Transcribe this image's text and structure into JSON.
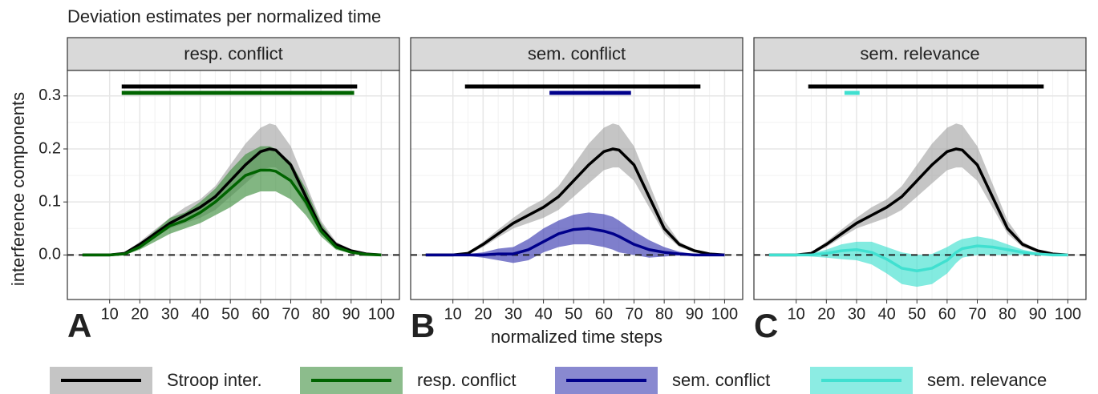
{
  "chart_data": {
    "type": "line",
    "title": "Deviation estimates per normalized time",
    "xlabel": "normalized time steps",
    "ylabel": "interference components",
    "x": [
      1,
      5,
      10,
      15,
      20,
      25,
      30,
      35,
      40,
      45,
      50,
      55,
      60,
      63,
      65,
      70,
      75,
      80,
      85,
      90,
      95,
      100
    ],
    "xlim": [
      -4,
      106
    ],
    "ylim": [
      -0.084,
      0.348
    ],
    "xticks": [
      10,
      20,
      30,
      40,
      50,
      60,
      70,
      80,
      90,
      100
    ],
    "yticks": [
      {
        "value": 0,
        "label": "0.0"
      },
      0.1,
      0.2,
      0.3
    ],
    "hline": 0,
    "grid": true,
    "panels": [
      {
        "title": "resp. conflict",
        "label": "A",
        "series": [
          {
            "name": "Stroop inter.",
            "color": "#000000",
            "fill": "#9e9e9e",
            "values": [
              0,
              0,
              0,
              0.003,
              0.02,
              0.04,
              0.06,
              0.075,
              0.09,
              0.11,
              0.14,
              0.17,
              0.195,
              0.2,
              0.198,
              0.17,
              0.11,
              0.05,
              0.02,
              0.008,
              0.002,
              0
            ],
            "lower": [
              0,
              0,
              0,
              0.001,
              0.015,
              0.033,
              0.05,
              0.06,
              0.07,
              0.085,
              0.11,
              0.135,
              0.16,
              0.165,
              0.165,
              0.14,
              0.09,
              0.04,
              0.015,
              0.005,
              0.001,
              0
            ],
            "upper": [
              0,
              0,
              0,
              0.005,
              0.025,
              0.048,
              0.07,
              0.09,
              0.105,
              0.13,
              0.17,
              0.21,
              0.24,
              0.248,
              0.245,
              0.205,
              0.135,
              0.065,
              0.025,
              0.01,
              0.003,
              0
            ],
            "sig": [
              14,
              92
            ]
          },
          {
            "name": "resp. conflict",
            "color": "#006400",
            "fill": "#3f8f3f",
            "values": [
              0,
              0,
              0,
              0.002,
              0.015,
              0.035,
              0.055,
              0.065,
              0.08,
              0.1,
              0.125,
              0.15,
              0.16,
              0.16,
              0.158,
              0.14,
              0.1,
              0.045,
              0.015,
              0.005,
              0.001,
              0
            ],
            "lower": [
              0,
              0,
              0,
              0,
              0.01,
              0.025,
              0.04,
              0.05,
              0.06,
              0.075,
              0.09,
              0.11,
              0.12,
              0.12,
              0.12,
              0.105,
              0.075,
              0.035,
              0.01,
              0.003,
              0,
              0
            ],
            "upper": [
              0,
              0,
              0,
              0.004,
              0.02,
              0.045,
              0.07,
              0.08,
              0.1,
              0.125,
              0.16,
              0.19,
              0.205,
              0.205,
              0.2,
              0.175,
              0.125,
              0.06,
              0.02,
              0.007,
              0.002,
              0
            ],
            "sig": [
              14,
              91
            ]
          }
        ]
      },
      {
        "title": "sem. conflict",
        "label": "B",
        "series": [
          {
            "name": "Stroop inter.",
            "color": "#000000",
            "fill": "#9e9e9e",
            "values": [
              0,
              0,
              0,
              0.003,
              0.02,
              0.04,
              0.06,
              0.075,
              0.09,
              0.11,
              0.14,
              0.17,
              0.195,
              0.2,
              0.198,
              0.17,
              0.11,
              0.05,
              0.02,
              0.008,
              0.002,
              0
            ],
            "lower": [
              0,
              0,
              0,
              0.001,
              0.015,
              0.033,
              0.05,
              0.06,
              0.07,
              0.085,
              0.11,
              0.135,
              0.16,
              0.165,
              0.165,
              0.14,
              0.09,
              0.04,
              0.015,
              0.005,
              0.001,
              0
            ],
            "upper": [
              0,
              0,
              0,
              0.005,
              0.025,
              0.048,
              0.07,
              0.09,
              0.105,
              0.13,
              0.17,
              0.21,
              0.24,
              0.248,
              0.245,
              0.205,
              0.135,
              0.065,
              0.025,
              0.01,
              0.003,
              0
            ],
            "sig": [
              14,
              92
            ]
          },
          {
            "name": "sem. conflict",
            "color": "#00008b",
            "fill": "#3a3ab0",
            "values": [
              0,
              0,
              0,
              0,
              0,
              0.002,
              0.002,
              0.01,
              0.025,
              0.04,
              0.048,
              0.05,
              0.045,
              0.04,
              0.035,
              0.02,
              0.01,
              0.005,
              0.002,
              0,
              0,
              0
            ],
            "lower": [
              0,
              0,
              0,
              -0.002,
              -0.005,
              -0.01,
              -0.015,
              -0.01,
              0.005,
              0.015,
              0.02,
              0.02,
              0.015,
              0.01,
              0.005,
              0,
              -0.005,
              -0.003,
              -0.001,
              0,
              0,
              0
            ],
            "upper": [
              0,
              0,
              0,
              0.002,
              0.005,
              0.012,
              0.015,
              0.03,
              0.05,
              0.065,
              0.076,
              0.08,
              0.077,
              0.072,
              0.065,
              0.045,
              0.028,
              0.015,
              0.006,
              0.002,
              0,
              0
            ],
            "sig": [
              42,
              69
            ]
          }
        ]
      },
      {
        "title": "sem. relevance",
        "label": "C",
        "series": [
          {
            "name": "Stroop inter.",
            "color": "#000000",
            "fill": "#9e9e9e",
            "values": [
              0,
              0,
              0,
              0.003,
              0.02,
              0.04,
              0.06,
              0.075,
              0.09,
              0.11,
              0.14,
              0.17,
              0.195,
              0.2,
              0.198,
              0.17,
              0.11,
              0.05,
              0.02,
              0.008,
              0.002,
              0
            ],
            "lower": [
              0,
              0,
              0,
              0.001,
              0.015,
              0.033,
              0.05,
              0.06,
              0.07,
              0.085,
              0.11,
              0.135,
              0.16,
              0.165,
              0.165,
              0.14,
              0.09,
              0.04,
              0.015,
              0.005,
              0.001,
              0
            ],
            "upper": [
              0,
              0,
              0,
              0.005,
              0.025,
              0.048,
              0.07,
              0.09,
              0.105,
              0.13,
              0.17,
              0.21,
              0.24,
              0.248,
              0.245,
              0.205,
              0.135,
              0.065,
              0.025,
              0.01,
              0.003,
              0
            ],
            "sig": [
              14,
              92
            ]
          },
          {
            "name": "sem. relevance",
            "color": "#40e0d0",
            "fill": "#40e0d0",
            "values": [
              0,
              0,
              0,
              0,
              0.003,
              0.008,
              0.01,
              0.005,
              -0.008,
              -0.025,
              -0.03,
              -0.025,
              -0.01,
              0.005,
              0.012,
              0.017,
              0.015,
              0.01,
              0.005,
              0.002,
              0,
              0
            ],
            "lower": [
              0,
              0,
              0,
              -0.003,
              -0.005,
              -0.008,
              -0.01,
              -0.018,
              -0.035,
              -0.055,
              -0.06,
              -0.055,
              -0.035,
              -0.015,
              -0.005,
              0,
              0,
              0,
              0,
              0,
              0,
              0
            ],
            "upper": [
              0,
              0,
              0,
              0.003,
              0.01,
              0.02,
              0.025,
              0.025,
              0.015,
              0.005,
              0,
              0.002,
              0.015,
              0.025,
              0.03,
              0.035,
              0.03,
              0.02,
              0.01,
              0.004,
              0,
              0
            ],
            "sig": [
              26,
              31
            ]
          }
        ]
      }
    ]
  }
}
